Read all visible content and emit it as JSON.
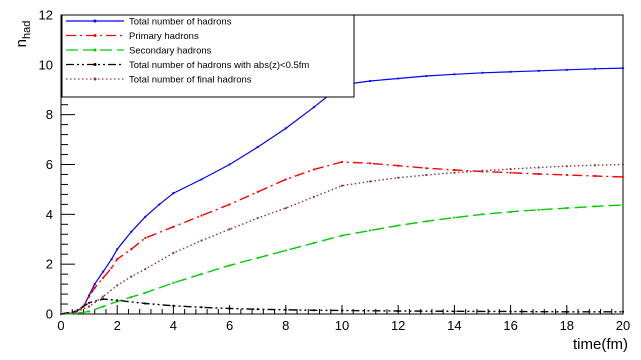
{
  "chart_data": {
    "type": "line",
    "title": "",
    "xlabel": "time(fm)",
    "ylabel": "n",
    "ylabel_sub": "had",
    "xlim": [
      0,
      20
    ],
    "ylim": [
      0,
      12
    ],
    "x_ticks": [
      0,
      2,
      4,
      6,
      8,
      10,
      12,
      14,
      16,
      18,
      20
    ],
    "y_ticks": [
      0,
      2,
      4,
      6,
      8,
      10,
      12
    ],
    "grid": false,
    "legend_position": "top-left",
    "series": [
      {
        "name": "Total number of hadrons",
        "color": "#0000ff",
        "style": "solid",
        "x": [
          0,
          0.5,
          0.8,
          1.0,
          1.2,
          1.5,
          1.8,
          2.0,
          2.5,
          3.0,
          3.5,
          4.0,
          5.0,
          6.0,
          7.0,
          8.0,
          9.0,
          9.5,
          10.0,
          11.0,
          12.0,
          13.0,
          14.0,
          15.0,
          16.0,
          17.0,
          18.0,
          19.0,
          20.0
        ],
        "y": [
          0,
          0.05,
          0.3,
          0.75,
          1.2,
          1.7,
          2.2,
          2.6,
          3.3,
          3.9,
          4.4,
          4.85,
          5.4,
          6.0,
          6.7,
          7.45,
          8.3,
          8.75,
          9.2,
          9.35,
          9.45,
          9.55,
          9.62,
          9.68,
          9.72,
          9.76,
          9.8,
          9.84,
          9.87
        ]
      },
      {
        "name": "Primary hadrons",
        "color": "#ff0000",
        "style": "dash-dot",
        "x": [
          0,
          0.5,
          0.8,
          1.0,
          1.2,
          1.5,
          1.8,
          2.0,
          2.5,
          3.0,
          4.0,
          5.0,
          6.0,
          7.0,
          8.0,
          9.0,
          10.0,
          11.0,
          12.0,
          13.0,
          14.0,
          15.0,
          16.0,
          17.0,
          18.0,
          19.0,
          20.0
        ],
        "y": [
          0,
          0.05,
          0.3,
          0.7,
          1.05,
          1.45,
          1.85,
          2.2,
          2.6,
          3.05,
          3.5,
          3.95,
          4.4,
          4.9,
          5.4,
          5.8,
          6.1,
          6.05,
          5.95,
          5.85,
          5.78,
          5.72,
          5.67,
          5.62,
          5.58,
          5.54,
          5.5
        ]
      },
      {
        "name": "Secondary hadrons",
        "color": "#00cc00",
        "style": "dashed",
        "x": [
          0,
          0.5,
          1.0,
          1.5,
          2.0,
          2.5,
          3.0,
          4.0,
          5.0,
          6.0,
          7.0,
          8.0,
          9.0,
          10.0,
          11.0,
          12.0,
          13.0,
          14.0,
          15.0,
          16.0,
          17.0,
          18.0,
          19.0,
          20.0
        ],
        "y": [
          0,
          0.02,
          0.1,
          0.3,
          0.5,
          0.68,
          0.85,
          1.25,
          1.6,
          1.95,
          2.25,
          2.55,
          2.85,
          3.15,
          3.35,
          3.55,
          3.72,
          3.87,
          4.0,
          4.1,
          4.18,
          4.25,
          4.32,
          4.38
        ]
      },
      {
        "name": "Total number of hadrons with abs(z)<0.5fm",
        "color": "#000000",
        "style": "dash-dot-dot",
        "x": [
          0,
          0.5,
          1.0,
          1.5,
          2.0,
          3.0,
          4.0,
          5.0,
          6.0,
          7.0,
          8.0,
          9.0,
          10.0,
          12.0,
          14.0,
          16.0,
          18.0,
          20.0
        ],
        "y": [
          0,
          0.1,
          0.45,
          0.6,
          0.55,
          0.42,
          0.33,
          0.27,
          0.22,
          0.19,
          0.17,
          0.15,
          0.14,
          0.12,
          0.11,
          0.1,
          0.09,
          0.09
        ]
      },
      {
        "name": "Total number of final hadrons",
        "color": "#8b3a3a",
        "style": "dotted",
        "x": [
          0,
          0.5,
          1.0,
          1.5,
          2.0,
          2.5,
          3.0,
          4.0,
          5.0,
          6.0,
          7.0,
          8.0,
          9.0,
          10.0,
          11.0,
          12.0,
          13.0,
          14.0,
          15.0,
          16.0,
          17.0,
          18.0,
          19.0,
          20.0
        ],
        "y": [
          0,
          0.05,
          0.3,
          0.7,
          1.15,
          1.5,
          1.8,
          2.45,
          2.95,
          3.4,
          3.85,
          4.25,
          4.7,
          5.15,
          5.32,
          5.47,
          5.58,
          5.67,
          5.75,
          5.82,
          5.88,
          5.93,
          5.97,
          6.0
        ]
      }
    ]
  }
}
